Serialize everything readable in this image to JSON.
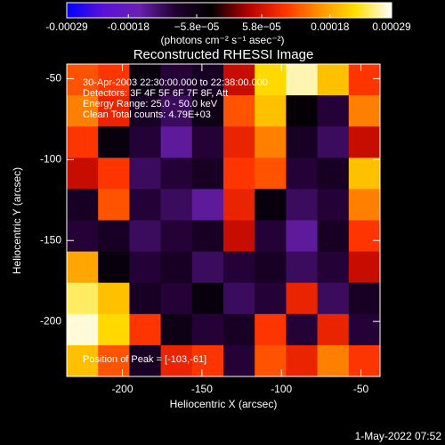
{
  "chart_data": {
    "type": "heatmap",
    "title": "Reconstructed RHESSI Image",
    "xlabel": "Heliocentric X (arcsec)",
    "ylabel": "Heliocentric Y (arcsec)",
    "xlim": [
      -235,
      -38
    ],
    "ylim": [
      -234,
      -41
    ],
    "xticks": [
      -200,
      -150,
      -100,
      -50
    ],
    "yticks": [
      -50,
      -100,
      -150,
      -200
    ],
    "colorbar_label": "(photons cm⁻² s⁻¹ asec⁻²)",
    "zlim": [
      -0.00029,
      0.00029
    ],
    "zticks": [
      -0.00029,
      -0.00018,
      {
        "value": -5.8e-05,
        "label": "−5.8e−05"
      },
      {
        "value": 5.8e-05,
        "label": "5.8e−05"
      },
      0.00018,
      0.00029
    ],
    "colormap": [
      "#0000ff",
      "#5a10d8",
      "#6a20b0",
      "#200030",
      "#000000",
      "#b00000",
      "#ff3000",
      "#ff9000",
      "#ffe000",
      "#ffffff"
    ],
    "annotations": [
      "30-Apr-2003 22:30:00.000 to 22:38:00.000",
      "Detectors: 3F 4F 5F 6F 7F 8F, Att",
      "Energy Range: 25.0 - 50.0 keV",
      "Clean     Total counts: 4.79E+03",
      "Position of Peak = [-103,-61]"
    ],
    "footer": "1-May-2022 07:52",
    "z": [
      [
        0.00012,
        0.0001,
        -5e-05,
        -0.0001,
        -8e-05,
        5e-05,
        0.00022,
        0.00027,
        0.0002,
        0.0001
      ],
      [
        0.00015,
        8e-05,
        -8e-05,
        -0.00012,
        -6e-05,
        0.00012,
        0.0002,
        -4e-05,
        -0.0001,
        0.00015
      ],
      [
        0.0001,
        -5e-05,
        -0.0001,
        -0.00015,
        -0.0001,
        8e-05,
        0.00015,
        -8e-05,
        -0.00012,
        5e-05
      ],
      [
        5e-05,
        0.0001,
        -0.00012,
        -0.0001,
        -8e-05,
        0.0001,
        0.00012,
        -0.0001,
        -8e-05,
        0.0002
      ],
      [
        -8e-05,
        0.00012,
        -0.0001,
        -0.00012,
        -0.00015,
        8e-05,
        -5e-05,
        -0.00012,
        -0.0001,
        0.00015
      ],
      [
        -0.0001,
        -8e-05,
        -0.00012,
        -0.0001,
        -8e-05,
        5e-05,
        -0.0001,
        -0.00015,
        -8e-05,
        0.0001
      ],
      [
        0.00018,
        -5e-05,
        -0.0001,
        -8e-05,
        -0.00012,
        -0.0001,
        -8e-05,
        -0.00012,
        -0.0001,
        5e-05
      ],
      [
        0.00025,
        0.0002,
        -8e-05,
        -0.0001,
        -5e-05,
        -0.00012,
        -0.0001,
        8e-05,
        -0.00012,
        -8e-05
      ],
      [
        0.00028,
        0.00022,
        0.0001,
        -6e-05,
        -0.0001,
        -8e-05,
        0.0001,
        -0.0001,
        8e-05,
        -0.0001
      ],
      [
        0.0002,
        0.00012,
        -8e-05,
        8e-05,
        0.0001,
        -0.0001,
        0.00012,
        8e-05,
        0.00015,
        0.0001
      ]
    ]
  }
}
